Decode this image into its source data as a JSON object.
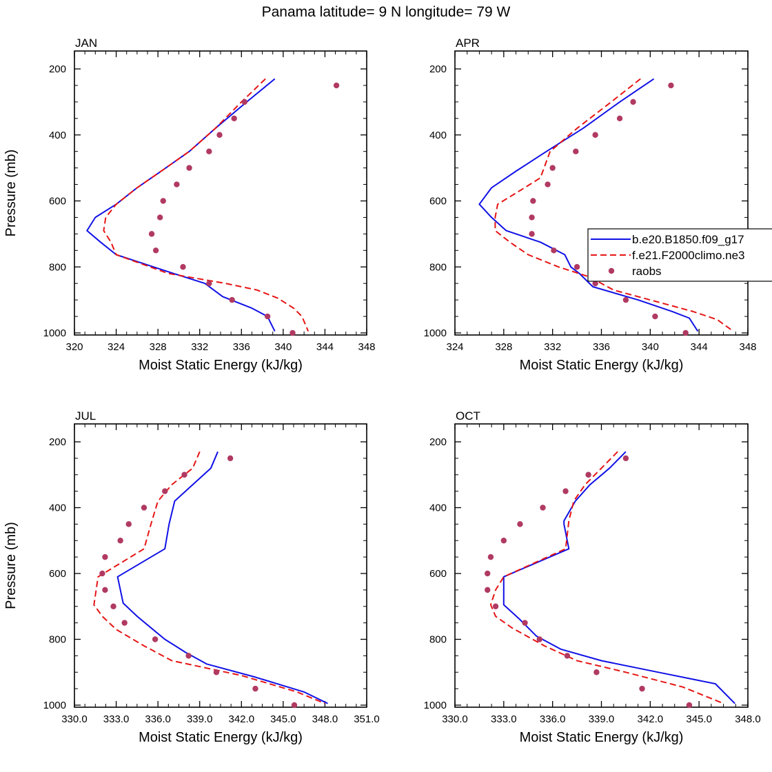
{
  "figure_title": "Panama  latitude= 9 N longitude= 79 W",
  "colors": {
    "model_b": "#1010e6",
    "model_f": "#e61414",
    "raobs": "#b03a62"
  },
  "legend": [
    {
      "label": "b.e20.B1850.f09_g17",
      "style": "solid-line",
      "series_key": "b"
    },
    {
      "label": "f.e21.F2000climo.ne3",
      "style": "dashed-line",
      "series_key": "f"
    },
    {
      "label": "raobs",
      "style": "dots",
      "series_key": "raobs"
    }
  ],
  "chart_data": [
    {
      "type": "line",
      "title": "JAN",
      "xlabel": "Moist Static Energy (kJ/kg)",
      "ylabel": "Pressure (mb)",
      "xlim": [
        320,
        348
      ],
      "xticks": [
        320,
        324,
        328,
        332,
        336,
        340,
        344,
        348
      ],
      "xtick_labels": [
        "320",
        "324",
        "328",
        "332",
        "336",
        "340",
        "344",
        "348"
      ],
      "ylim": [
        200,
        1000
      ],
      "yticks": [
        200,
        400,
        600,
        800,
        1000
      ],
      "ytick_labels": [
        "200",
        "400",
        "600",
        "800",
        "1000"
      ],
      "series": [
        {
          "name": "b.e20.B1850.f09_g17",
          "style": "solid",
          "x": [
            339.2,
            336.5,
            333.5,
            331.0,
            328.3,
            326.0,
            324.0,
            322.0,
            321.2,
            322.5,
            324.0,
            329.5,
            332.5,
            334.2,
            337.0,
            338.5,
            338.8,
            339.2
          ],
          "y": [
            230,
            300,
            380,
            450,
            510,
            560,
            610,
            650,
            690,
            725,
            763,
            820,
            850,
            890,
            925,
            950,
            970,
            995
          ]
        },
        {
          "name": "f.e21.F2000climo.ne3",
          "style": "dashed",
          "x": [
            338.3,
            336.0,
            333.5,
            331.0,
            328.3,
            326.0,
            324.0,
            323.0,
            322.8,
            323.5,
            324.0,
            329.0,
            334.5,
            337.5,
            339.5,
            341.0,
            341.8,
            342.4
          ],
          "y": [
            230,
            300,
            380,
            450,
            510,
            560,
            610,
            650,
            690,
            725,
            763,
            820,
            850,
            870,
            895,
            925,
            950,
            995
          ]
        },
        {
          "name": "raobs",
          "style": "dots",
          "x": [
            345.1,
            336.3,
            335.3,
            333.9,
            332.9,
            331.0,
            329.8,
            328.5,
            328.2,
            327.4,
            327.8,
            330.4,
            332.9,
            335.1,
            338.5,
            340.9
          ],
          "y": [
            250,
            300,
            350,
            400,
            450,
            500,
            550,
            600,
            650,
            700,
            750,
            800,
            850,
            900,
            950,
            1000
          ]
        }
      ]
    },
    {
      "type": "line",
      "title": "APR",
      "xlabel": "Moist Static Energy (kJ/kg)",
      "ylabel": "Pressure (mb)",
      "xlim": [
        324,
        348
      ],
      "xticks": [
        324,
        328,
        332,
        336,
        340,
        344,
        348
      ],
      "xtick_labels": [
        "324",
        "328",
        "332",
        "336",
        "340",
        "344",
        "348"
      ],
      "ylim": [
        200,
        1000
      ],
      "yticks": [
        200,
        400,
        600,
        800,
        1000
      ],
      "ytick_labels": [
        "200",
        "400",
        "600",
        "800",
        "1000"
      ],
      "series": [
        {
          "name": "b.e20.B1850.f09_g17",
          "style": "solid",
          "x": [
            340.3,
            337.5,
            334.5,
            331.5,
            329.0,
            327.0,
            326.0,
            327.0,
            328.2,
            331.0,
            333.0,
            333.5,
            334.2,
            335.3,
            339.0,
            341.8,
            343.2,
            343.9
          ],
          "y": [
            230,
            300,
            380,
            450,
            510,
            560,
            610,
            650,
            690,
            725,
            763,
            800,
            820,
            860,
            900,
            935,
            955,
            995
          ]
        },
        {
          "name": "f.e21.F2000climo.ne3",
          "style": "dashed",
          "x": [
            339.2,
            336.8,
            334.0,
            331.8,
            331.0,
            329.5,
            327.5,
            327.3,
            327.3,
            328.5,
            330.0,
            332.5,
            335.0,
            337.0,
            340.5,
            343.5,
            345.5,
            346.8
          ],
          "y": [
            230,
            300,
            380,
            450,
            530,
            565,
            610,
            650,
            690,
            725,
            763,
            800,
            830,
            870,
            905,
            935,
            960,
            995
          ]
        },
        {
          "name": "raobs",
          "style": "dots",
          "x": [
            341.7,
            338.6,
            337.5,
            335.5,
            333.9,
            332.0,
            331.6,
            330.4,
            330.3,
            330.3,
            332.1,
            334.0,
            335.5,
            338.0,
            340.4,
            342.9
          ],
          "y": [
            250,
            300,
            350,
            400,
            450,
            500,
            550,
            600,
            650,
            700,
            750,
            800,
            850,
            900,
            950,
            1000
          ]
        }
      ]
    },
    {
      "type": "line",
      "title": "JUL",
      "xlabel": "Moist Static Energy (kJ/kg)",
      "ylabel": "Pressure (mb)",
      "xlim": [
        330,
        351
      ],
      "xticks": [
        330,
        333,
        336,
        339,
        342,
        345,
        348,
        351
      ],
      "xtick_labels": [
        "330.0",
        "333.0",
        "336.0",
        "339.0",
        "342.0",
        "345.0",
        "348.0",
        "351.0"
      ],
      "ylim": [
        200,
        1000
      ],
      "yticks": [
        200,
        400,
        600,
        800,
        1000
      ],
      "ytick_labels": [
        "200",
        "400",
        "600",
        "800",
        "1000"
      ],
      "series": [
        {
          "name": "b.e20.B1850.f09_g17",
          "style": "solid",
          "x": [
            340.3,
            339.8,
            338.5,
            337.2,
            336.8,
            336.5,
            333.1,
            333.5,
            334.5,
            335.5,
            336.5,
            338.0,
            339.5,
            343.0,
            346.5,
            348.2
          ],
          "y": [
            230,
            280,
            330,
            380,
            450,
            525,
            610,
            690,
            730,
            765,
            800,
            840,
            875,
            915,
            960,
            995
          ]
        },
        {
          "name": "f.e21.F2000climo.ne3",
          "style": "dashed",
          "x": [
            339.0,
            338.5,
            337.0,
            336.0,
            335.5,
            335.0,
            331.7,
            331.4,
            332.0,
            333.0,
            335.0,
            337.0,
            342.0,
            346.0,
            348.0
          ],
          "y": [
            230,
            280,
            330,
            380,
            450,
            525,
            610,
            695,
            730,
            770,
            820,
            865,
            910,
            960,
            995
          ]
        },
        {
          "name": "raobs",
          "style": "dots",
          "x": [
            341.2,
            337.9,
            336.5,
            335.0,
            333.9,
            333.3,
            332.2,
            332.0,
            332.2,
            332.8,
            333.6,
            335.8,
            338.2,
            340.2,
            343.0,
            345.8
          ],
          "y": [
            250,
            300,
            350,
            400,
            450,
            500,
            550,
            600,
            650,
            700,
            750,
            800,
            850,
            900,
            950,
            1000
          ]
        }
      ]
    },
    {
      "type": "line",
      "title": "OCT",
      "xlabel": "Moist Static Energy (kJ/kg)",
      "ylabel": "Pressure (mb)",
      "xlim": [
        330,
        348
      ],
      "xticks": [
        330,
        333,
        336,
        339,
        342,
        345,
        348
      ],
      "xtick_labels": [
        "330.0",
        "333.0",
        "336.0",
        "339.0",
        "342.0",
        "345.0",
        "348.0"
      ],
      "ylim": [
        200,
        1000
      ],
      "yticks": [
        200,
        400,
        600,
        800,
        1000
      ],
      "ytick_labels": [
        "200",
        "400",
        "600",
        "800",
        "1000"
      ],
      "series": [
        {
          "name": "b.e20.B1850.f09_g17",
          "style": "solid",
          "x": [
            340.5,
            339.5,
            338.3,
            337.4,
            336.7,
            336.7,
            337.0,
            333.0,
            333.0,
            333.0,
            334.0,
            335.0,
            336.5,
            339.0,
            342.5,
            346.0,
            347.2
          ],
          "y": [
            230,
            280,
            330,
            380,
            440,
            450,
            525,
            610,
            660,
            695,
            740,
            790,
            830,
            865,
            900,
            935,
            995
          ]
        },
        {
          "name": "f.e21.F2000climo.ne3",
          "style": "dashed",
          "x": [
            340.0,
            339.0,
            338.0,
            337.3,
            337.0,
            336.8,
            333.0,
            332.5,
            332.2,
            332.5,
            333.5,
            335.5,
            337.5,
            340.5,
            344.0,
            346.5
          ],
          "y": [
            230,
            280,
            330,
            380,
            440,
            525,
            610,
            650,
            695,
            730,
            765,
            820,
            865,
            900,
            945,
            995
          ]
        },
        {
          "name": "raobs",
          "style": "dots",
          "x": [
            340.5,
            338.2,
            336.8,
            335.4,
            334.0,
            333.0,
            332.2,
            332.0,
            332.0,
            332.5,
            334.3,
            335.2,
            336.9,
            338.7,
            341.5,
            344.4
          ],
          "y": [
            250,
            300,
            350,
            400,
            450,
            500,
            550,
            600,
            650,
            700,
            750,
            800,
            850,
            900,
            950,
            1000
          ]
        }
      ]
    }
  ]
}
